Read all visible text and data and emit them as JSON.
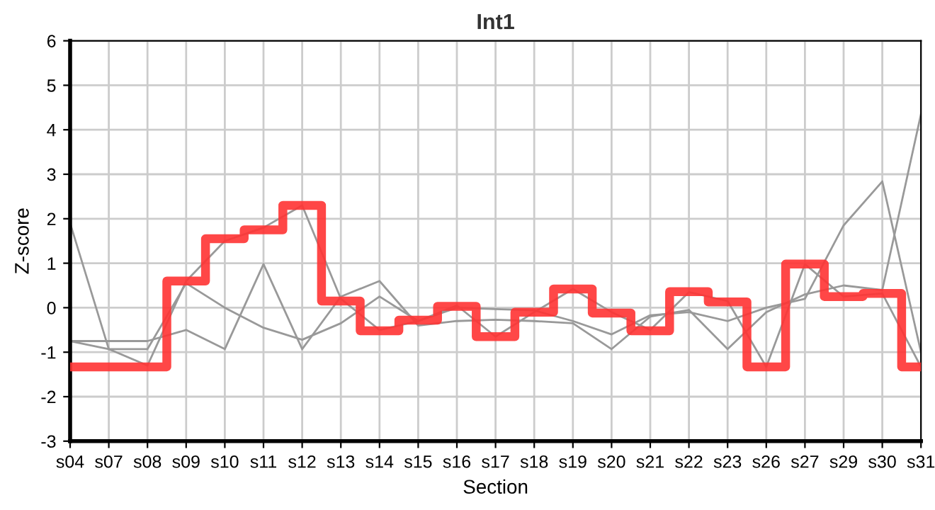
{
  "chart_data": {
    "type": "line",
    "title": "Int1",
    "xlabel": "Section",
    "ylabel": "Z-score",
    "categories": [
      "s04",
      "s07",
      "s08",
      "s09",
      "s10",
      "s11",
      "s12",
      "s13",
      "s14",
      "s15",
      "s16",
      "s17",
      "s18",
      "s19",
      "s20",
      "s21",
      "s22",
      "s23",
      "s26",
      "s27",
      "s29",
      "s30",
      "s31"
    ],
    "series": [
      {
        "color": "#999999",
        "values": [
          -0.75,
          -0.93,
          -1.3,
          0.6,
          1.5,
          1.8,
          2.3,
          0.2,
          -0.5,
          -0.3,
          0.05,
          -0.65,
          -0.1,
          0.42,
          -0.1,
          -0.5,
          0.35,
          0.15,
          -1.33,
          0.98,
          0.25,
          0.32,
          -1.33
        ]
      },
      {
        "color": "#999999",
        "values": [
          1.9,
          -0.93,
          -0.93,
          0.55,
          0.0,
          -0.45,
          -0.72,
          -0.35,
          0.25,
          -0.3,
          0.0,
          -0.03,
          -0.06,
          -0.3,
          -0.6,
          -0.17,
          -0.1,
          -0.3,
          0.0,
          0.2,
          1.85,
          2.84,
          -1.0
        ]
      },
      {
        "color": "#999999",
        "values": [
          -0.75,
          -0.75,
          -0.75,
          -0.5,
          -0.93,
          0.98,
          -0.93,
          0.25,
          0.6,
          -0.4,
          -0.3,
          -0.27,
          -0.3,
          -0.35,
          -0.93,
          -0.2,
          -0.05,
          -0.93,
          -0.1,
          0.3,
          0.5,
          0.4,
          4.35
        ]
      },
      {
        "type": "step",
        "color": "#ff3333",
        "values": [
          -1.33,
          -1.33,
          -1.33,
          0.6,
          1.55,
          1.75,
          2.3,
          0.15,
          -0.52,
          -0.28,
          0.03,
          -0.65,
          -0.1,
          0.42,
          -0.12,
          -0.52,
          0.36,
          0.13,
          -1.33,
          0.98,
          0.25,
          0.32,
          -1.33
        ]
      }
    ],
    "ylim": [
      -3,
      6
    ],
    "yticks": [
      -3,
      -2,
      -1,
      0,
      1,
      2,
      3,
      4,
      5,
      6
    ],
    "grid": true
  }
}
